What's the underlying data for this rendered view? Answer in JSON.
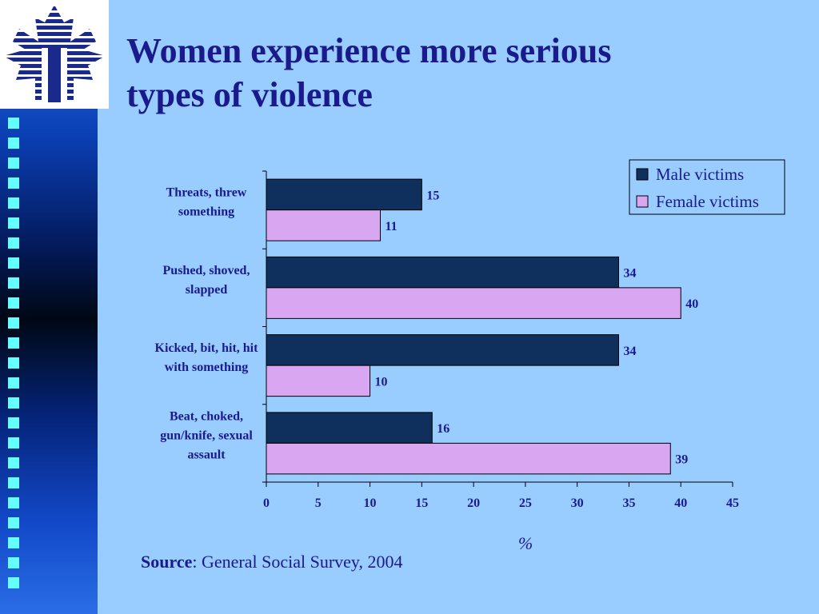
{
  "slide": {
    "title_line1": "Women experience more serious",
    "title_line2": "types of violence",
    "source_label": "Source",
    "source_text": ": General Social Survey, 2004"
  },
  "colors": {
    "background": "#99ccff",
    "male": "#0f2f5c",
    "female": "#d9a6f2",
    "text": "#1a1a8c"
  },
  "chart_data": {
    "type": "bar",
    "orientation": "horizontal",
    "title": "",
    "xlabel": "%",
    "ylabel": "",
    "xlim": [
      0,
      45
    ],
    "xticks": [
      0,
      5,
      10,
      15,
      20,
      25,
      30,
      35,
      40,
      45
    ],
    "grid": false,
    "legend_position": "top-right",
    "categories": [
      [
        "Threats, threw",
        "something"
      ],
      [
        "Pushed, shoved,",
        "slapped"
      ],
      [
        "Kicked, bit, hit, hit",
        "with something"
      ],
      [
        "Beat, choked,",
        "gun/knife, sexual",
        "assault"
      ]
    ],
    "series": [
      {
        "name": "Male victims",
        "values": [
          15,
          34,
          34,
          16
        ]
      },
      {
        "name": "Female victims",
        "values": [
          11,
          40,
          10,
          39
        ]
      }
    ]
  }
}
